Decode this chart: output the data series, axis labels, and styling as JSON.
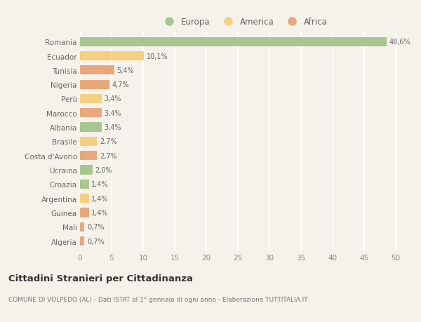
{
  "countries": [
    "Romania",
    "Ecuador",
    "Tunisia",
    "Nigeria",
    "Perù",
    "Marocco",
    "Albania",
    "Brasile",
    "Costa d'Avorio",
    "Ucraina",
    "Croazia",
    "Argentina",
    "Guinea",
    "Mali",
    "Algeria"
  ],
  "values": [
    48.6,
    10.1,
    5.4,
    4.7,
    3.4,
    3.4,
    3.4,
    2.7,
    2.7,
    2.0,
    1.4,
    1.4,
    1.4,
    0.7,
    0.7
  ],
  "labels": [
    "48,6%",
    "10,1%",
    "5,4%",
    "4,7%",
    "3,4%",
    "3,4%",
    "3,4%",
    "2,7%",
    "2,7%",
    "2,0%",
    "1,4%",
    "1,4%",
    "1,4%",
    "0,7%",
    "0,7%"
  ],
  "continents": [
    "Europa",
    "America",
    "Africa",
    "Africa",
    "America",
    "Africa",
    "Europa",
    "America",
    "Africa",
    "Europa",
    "Europa",
    "America",
    "Africa",
    "Africa",
    "Africa"
  ],
  "colors": {
    "Europa": "#a8c68f",
    "America": "#f5d080",
    "Africa": "#e8a87c"
  },
  "legend_labels": [
    "Europa",
    "America",
    "Africa"
  ],
  "title_main": "Cittadini Stranieri per Cittadinanza",
  "title_sub": "COMUNE DI VOLPEDO (AL) - Dati ISTAT al 1° gennaio di ogni anno - Elaborazione TUTTITALIA.IT",
  "xlim": [
    0,
    52
  ],
  "xticks": [
    0,
    5,
    10,
    15,
    20,
    25,
    30,
    35,
    40,
    45,
    50
  ],
  "background_color": "#f5f2ec",
  "grid_color": "#ffffff",
  "bar_height": 0.65,
  "label_color": "#666666",
  "tick_color": "#888888"
}
